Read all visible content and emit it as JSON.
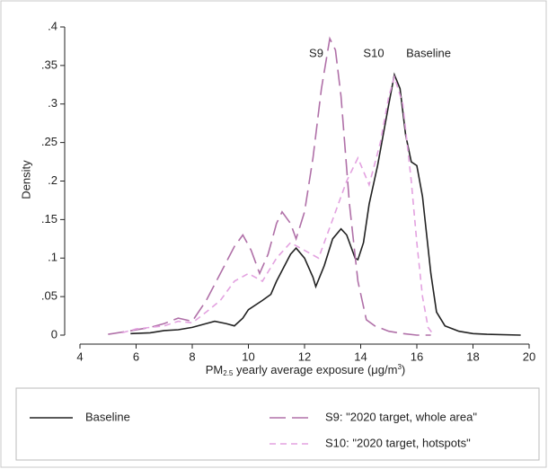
{
  "chart_data": {
    "type": "line",
    "ylabel": "Density",
    "xlabel_parts": [
      "PM",
      "2.5",
      " yearly average exposure (μg/m",
      "3",
      ")"
    ],
    "annotations": [
      "S9",
      "S10",
      "Baseline"
    ],
    "xlim": [
      4,
      20
    ],
    "xticks": [
      4,
      6,
      8,
      10,
      12,
      14,
      16,
      18,
      20
    ],
    "ylim": [
      0,
      0.4
    ],
    "yticks": [
      0,
      {
        "value": 0.05,
        "label": ".05"
      },
      {
        "value": 0.1,
        "label": ".1"
      },
      {
        "value": 0.15,
        "label": ".15"
      },
      {
        "value": 0.2,
        "label": ".2"
      },
      {
        "value": 0.25,
        "label": ".25"
      },
      {
        "value": 0.3,
        "label": ".3"
      },
      {
        "value": 0.35,
        "label": ".35"
      },
      {
        "value": 0.4,
        "label": ".4"
      }
    ],
    "grid": false,
    "series": [
      {
        "name": "Baseline",
        "color": "#222222",
        "dash": "none",
        "x": [
          5.8,
          6.5,
          7,
          7.5,
          8,
          8.5,
          8.8,
          9.2,
          9.5,
          9.8,
          10,
          10.5,
          10.8,
          11,
          11.5,
          11.7,
          12,
          12.3,
          12.4,
          12.7,
          13,
          13.3,
          13.5,
          13.8,
          13.9,
          14.1,
          14.3,
          14.6,
          15,
          15.2,
          15.4,
          15.6,
          15.8,
          16,
          16.2,
          16.5,
          16.7,
          17,
          17.5,
          18,
          18.5,
          19.7
        ],
        "values": [
          0.002,
          0.003,
          0.006,
          0.007,
          0.01,
          0.015,
          0.018,
          0.015,
          0.012,
          0.022,
          0.033,
          0.045,
          0.053,
          0.07,
          0.105,
          0.113,
          0.1,
          0.075,
          0.063,
          0.09,
          0.125,
          0.138,
          0.13,
          0.1,
          0.098,
          0.12,
          0.17,
          0.22,
          0.3,
          0.338,
          0.32,
          0.26,
          0.225,
          0.22,
          0.18,
          0.08,
          0.03,
          0.012,
          0.005,
          0.002,
          0.001,
          0
        ]
      },
      {
        "name": "S9: \"2020 target, whole area\"",
        "color": "#b070a8",
        "dash": "18 7",
        "x": [
          5,
          5.7,
          6.5,
          7,
          7.5,
          8,
          8.5,
          9,
          9.5,
          9.8,
          10.1,
          10.4,
          10.7,
          11,
          11.2,
          11.5,
          11.7,
          12,
          12.3,
          12.6,
          12.9,
          13.1,
          13.3,
          13.6,
          13.9,
          14.2,
          14.5,
          15,
          15.5,
          16,
          16.5
        ],
        "values": [
          0.001,
          0.005,
          0.01,
          0.015,
          0.022,
          0.018,
          0.045,
          0.08,
          0.115,
          0.13,
          0.11,
          0.08,
          0.105,
          0.145,
          0.16,
          0.145,
          0.125,
          0.16,
          0.23,
          0.32,
          0.385,
          0.37,
          0.31,
          0.17,
          0.07,
          0.02,
          0.012,
          0.005,
          0.002,
          0,
          0
        ]
      },
      {
        "name": "S10: \"2020 target, hotspots\"",
        "color": "#e3a2e0",
        "dash": "7 5",
        "x": [
          5.5,
          6,
          7,
          7.5,
          8,
          8.5,
          9,
          9.5,
          10,
          10.5,
          11,
          11.5,
          12,
          12.5,
          13,
          13.5,
          13.9,
          14.3,
          14.7,
          15,
          15.2,
          15.5,
          15.8,
          16,
          16.2,
          16.4,
          16.6
        ],
        "values": [
          0.003,
          0.008,
          0.012,
          0.018,
          0.016,
          0.03,
          0.045,
          0.07,
          0.08,
          0.07,
          0.1,
          0.12,
          0.11,
          0.1,
          0.15,
          0.2,
          0.23,
          0.195,
          0.25,
          0.31,
          0.335,
          0.3,
          0.2,
          0.12,
          0.05,
          0.01,
          0
        ]
      }
    ]
  }
}
